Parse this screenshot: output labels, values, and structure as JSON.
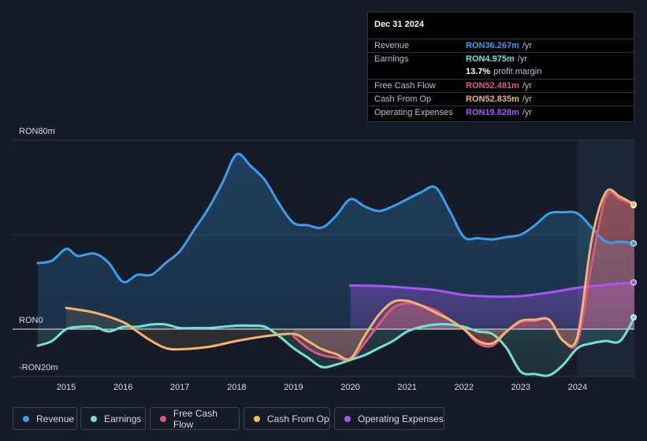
{
  "tooltip": {
    "date": "Dec 31 2024",
    "rows": [
      {
        "label": "Revenue",
        "value": "RON36.267m",
        "unit": "/yr",
        "color": "#3b9ee8"
      },
      {
        "label": "Earnings",
        "value": "RON4.975m",
        "unit": "/yr",
        "color": "#6fe3d1"
      },
      {
        "label": "",
        "value": "13.7%",
        "unit": "profit margin",
        "color": "#ffffff"
      },
      {
        "label": "Free Cash Flow",
        "value": "RON52.481m",
        "unit": "/yr",
        "color": "#e0557f"
      },
      {
        "label": "Cash From Op",
        "value": "RON52.835m",
        "unit": "/yr",
        "color": "#f0b46c"
      },
      {
        "label": "Operating Expenses",
        "value": "RON19.828m",
        "unit": "/yr",
        "color": "#a855f7"
      }
    ]
  },
  "legend": [
    {
      "label": "Revenue",
      "color": "#3b9ee8"
    },
    {
      "label": "Earnings",
      "color": "#6fe3d1"
    },
    {
      "label": "Free Cash Flow",
      "color": "#e0557f"
    },
    {
      "label": "Cash From Op",
      "color": "#f0b46c"
    },
    {
      "label": "Operating Expenses",
      "color": "#a855f7"
    }
  ],
  "chart_data": {
    "type": "line",
    "currency": "RON",
    "ytick_labels": [
      "RON80m",
      "RON0",
      "-RON20m"
    ],
    "ylim": [
      -20,
      80
    ],
    "xlim": [
      2014.5,
      2025.0
    ],
    "xtick_labels": [
      "2015",
      "2016",
      "2017",
      "2018",
      "2019",
      "2020",
      "2021",
      "2022",
      "2023",
      "2024"
    ],
    "xticks": [
      2015,
      2016,
      2017,
      2018,
      2019,
      2020,
      2021,
      2022,
      2023,
      2024
    ],
    "highlight_start": 2024.0,
    "series": [
      {
        "name": "Revenue",
        "color": "#3b9ee8",
        "fill": true,
        "x": [
          2014.5,
          2014.75,
          2015.0,
          2015.2,
          2015.5,
          2015.75,
          2016.0,
          2016.25,
          2016.5,
          2016.75,
          2017.0,
          2017.25,
          2017.5,
          2017.75,
          2018.0,
          2018.25,
          2018.5,
          2018.75,
          2019.0,
          2019.25,
          2019.5,
          2019.75,
          2020.0,
          2020.25,
          2020.5,
          2020.75,
          2021.0,
          2021.25,
          2021.5,
          2021.75,
          2022.0,
          2022.25,
          2022.5,
          2022.75,
          2023.0,
          2023.25,
          2023.5,
          2023.75,
          2024.0,
          2024.25,
          2024.5,
          2024.75,
          2025.0
        ],
        "values": [
          28,
          29,
          34,
          31,
          32,
          28,
          20,
          23,
          23,
          28,
          33,
          42,
          51,
          62,
          74,
          69,
          63,
          53,
          45,
          44,
          43,
          48,
          55,
          52,
          50,
          52,
          55,
          58,
          60,
          50,
          39,
          38.5,
          38,
          39,
          40,
          44,
          49,
          49.5,
          49,
          43,
          37,
          37,
          36.3
        ]
      },
      {
        "name": "Earnings",
        "color": "#6fe3d1",
        "fill": true,
        "x": [
          2014.5,
          2014.75,
          2015.0,
          2015.25,
          2015.5,
          2015.75,
          2016.0,
          2016.25,
          2016.5,
          2016.75,
          2017.0,
          2017.25,
          2017.5,
          2017.75,
          2018.0,
          2018.25,
          2018.5,
          2018.75,
          2019.0,
          2019.25,
          2019.5,
          2019.75,
          2020.0,
          2020.25,
          2020.5,
          2020.75,
          2021.0,
          2021.25,
          2021.5,
          2021.75,
          2022.0,
          2022.25,
          2022.5,
          2022.75,
          2023.0,
          2023.25,
          2023.5,
          2023.75,
          2024.0,
          2024.25,
          2024.5,
          2024.75,
          2025.0
        ],
        "values": [
          -7,
          -5,
          0,
          1,
          1,
          -1,
          1,
          1,
          2,
          2,
          0.5,
          0.5,
          0.5,
          1,
          1.5,
          1.5,
          1,
          -3,
          -8,
          -12,
          -16,
          -15,
          -13,
          -11,
          -8,
          -5,
          -1,
          1,
          2,
          2,
          1,
          -1,
          -2,
          -8,
          -18,
          -19,
          -19.5,
          -15,
          -8,
          -6,
          -5,
          -5,
          5
        ]
      },
      {
        "name": "Free Cash Flow",
        "color": "#e0557f",
        "fill": true,
        "x": [
          2019.0,
          2019.25,
          2019.5,
          2019.75,
          2020.0,
          2020.25,
          2020.5,
          2020.75,
          2021.0,
          2021.25,
          2021.5,
          2021.75,
          2022.0,
          2022.25,
          2022.5,
          2022.75,
          2023.0,
          2023.25,
          2023.5,
          2023.75,
          2024.0,
          2024.25,
          2024.5,
          2024.75,
          2025.0
        ],
        "values": [
          -3,
          -8,
          -11,
          -12,
          -13,
          -6,
          2,
          9,
          11,
          10,
          8,
          4,
          0,
          -6,
          -7,
          -1,
          3,
          3.5,
          4,
          -5,
          -5,
          28,
          56,
          55,
          52.5
        ]
      },
      {
        "name": "Cash From Op",
        "color": "#f0b46c",
        "fill": true,
        "x": [
          2014.5,
          2015.0,
          2015.5,
          2016.0,
          2016.25,
          2016.5,
          2016.75,
          2017.0,
          2017.5,
          2018.0,
          2018.5,
          2019.0,
          2019.25,
          2019.5,
          2019.75,
          2020.0,
          2020.25,
          2020.5,
          2020.75,
          2021.0,
          2021.25,
          2021.5,
          2021.75,
          2022.0,
          2022.25,
          2022.5,
          2022.75,
          2023.0,
          2023.25,
          2023.5,
          2023.75,
          2024.0,
          2024.25,
          2024.5,
          2024.75,
          2025.0
        ],
        "values": [
          null,
          9,
          7,
          3,
          -1,
          -5,
          -8,
          -8.5,
          -7.5,
          -5,
          -3,
          -2,
          -5,
          -8.5,
          -10.5,
          -12.5,
          -3,
          6,
          11.5,
          12,
          10,
          7,
          4,
          0,
          -5,
          -6,
          -1,
          3.5,
          4,
          4,
          -5,
          -3,
          38,
          58,
          56,
          52.8
        ]
      },
      {
        "name": "Operating Expenses",
        "color": "#a855f7",
        "fill": true,
        "x": [
          2020.0,
          2020.5,
          2021.0,
          2021.5,
          2022.0,
          2022.5,
          2023.0,
          2023.5,
          2024.0,
          2024.5,
          2025.0
        ],
        "values": [
          18.5,
          18.3,
          17.5,
          16.5,
          14.5,
          13.8,
          14,
          15.5,
          17.5,
          18.8,
          19.8
        ]
      }
    ]
  }
}
